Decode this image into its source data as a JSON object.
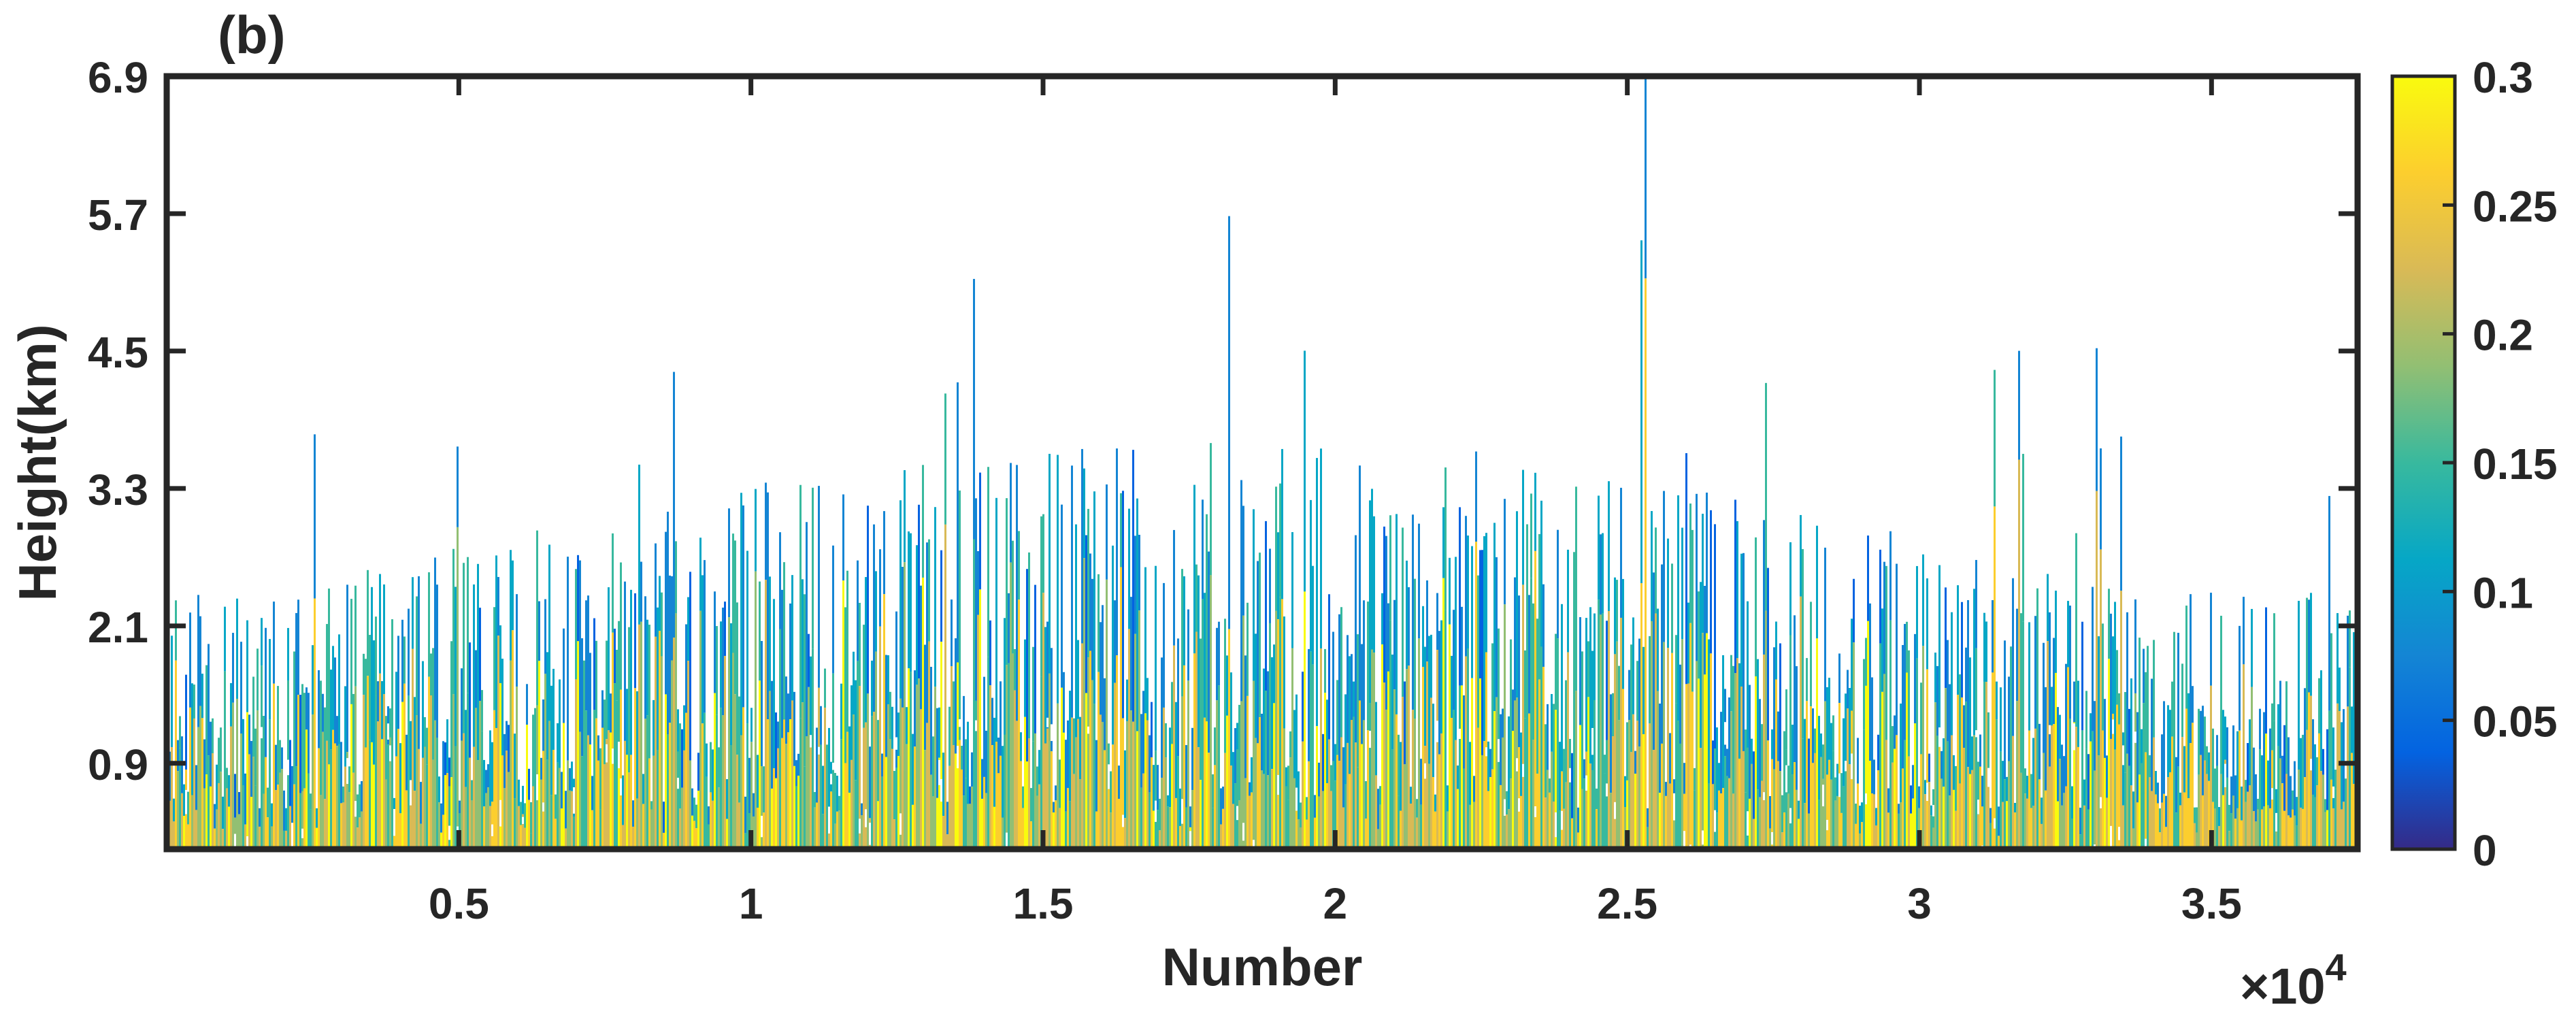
{
  "panel_label": "(b)",
  "chart_data": {
    "type": "heatmap",
    "title": "",
    "xlabel": "Number",
    "ylabel": "Height(km)",
    "x_exponent_label": "×10",
    "x_exponent_power": "4",
    "x_multiplier": 10000,
    "xlim": [
      0,
      37500
    ],
    "ylim": [
      0.15,
      6.9
    ],
    "xticks": [
      0.5,
      1,
      1.5,
      2,
      2.5,
      3,
      3.5
    ],
    "xtick_labels": [
      "0.5",
      "1",
      "1.5",
      "2",
      "2.5",
      "3",
      "3.5"
    ],
    "yticks": [
      0.9,
      2.1,
      3.3,
      4.5,
      5.7,
      6.9
    ],
    "ytick_labels": [
      "0.9",
      "2.1",
      "3.3",
      "4.5",
      "5.7",
      "6.9"
    ],
    "colorbar": {
      "range": [
        0,
        0.3
      ],
      "ticks": [
        0,
        0.05,
        0.1,
        0.15,
        0.2,
        0.25,
        0.3
      ],
      "tick_labels": [
        "0",
        "0.05",
        "0.1",
        "0.15",
        "0.2",
        "0.25",
        "0.3"
      ],
      "colormap": "parula",
      "colors": [
        "#352a87",
        "#0363e1",
        "#1485d4",
        "#06a7c6",
        "#38b99e",
        "#92bf73",
        "#d9ba56",
        "#fcce2e",
        "#f9fb0e"
      ]
    },
    "grid": false,
    "description_values": {
      "columns": 37500,
      "typical_top_km": [
        1.5,
        4.5
      ],
      "max_top_km": 6.9,
      "max_top_at_number": 25300,
      "low_layer_values_approx": [
        0.2,
        0.3
      ],
      "upper_layer_values_approx": [
        0.05,
        0.15
      ]
    }
  }
}
